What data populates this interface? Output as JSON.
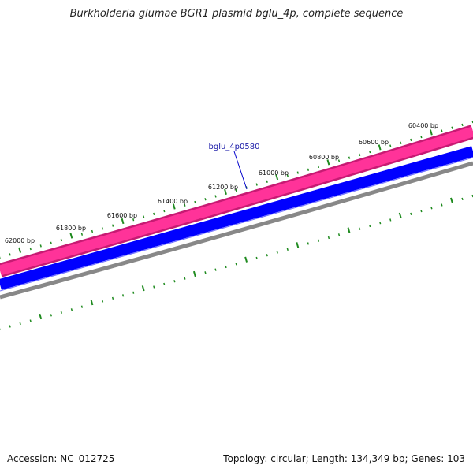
{
  "title": "Burkholderia glumae BGR1 plasmid bglu_4p, complete sequence",
  "footer": {
    "accession": "Accession: NC_012725",
    "summary": "Topology: circular; Length: 134,349 bp; Genes: 103"
  },
  "gene": {
    "label": "bglu_4p0580",
    "color": "#0000cc"
  },
  "bp_labels": [
    "60400 bp",
    "60600 bp",
    "60800 bp",
    "61000 bp",
    "61200 bp",
    "61400 bp",
    "61600 bp",
    "61800 bp",
    "62000 bp"
  ],
  "colors": {
    "tick": "#1e8a1e",
    "forward_track": "#ff3399",
    "forward_track_edge": "#c71a73",
    "reverse_track": "#0000ff",
    "backbone": "#888888",
    "gene_line": "#0000cc"
  }
}
